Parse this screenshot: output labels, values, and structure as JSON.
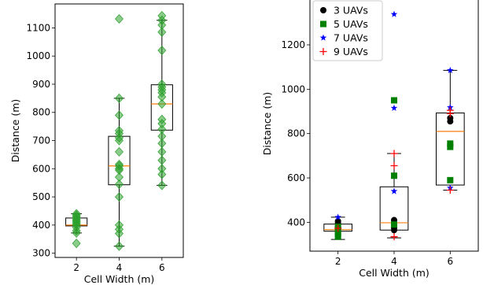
{
  "chart_data": [
    {
      "type": "boxplot",
      "xlabel": "Cell Width (m)",
      "ylabel": "Distance (m)",
      "ylim": [
        285,
        1185
      ],
      "x_positions": [
        2,
        4,
        6
      ],
      "categories": [
        "2",
        "4",
        "6"
      ],
      "yticks": [
        300,
        400,
        500,
        600,
        700,
        800,
        900,
        1000,
        1100
      ],
      "ytick_labels": [
        "300",
        "400",
        "500",
        "600",
        "700",
        "800",
        "900",
        "1000",
        "1100"
      ],
      "xtick_labels": [
        "2",
        "4",
        "6"
      ],
      "boxes": [
        {
          "x": 2,
          "q1": 397,
          "median": 400,
          "q3": 425,
          "whisker_low": 372,
          "whisker_high": 440
        },
        {
          "x": 4,
          "q1": 543,
          "median": 610,
          "q3": 715,
          "whisker_low": 325,
          "whisker_high": 850
        },
        {
          "x": 6,
          "q1": 737,
          "median": 830,
          "q3": 898,
          "whisker_low": 541,
          "whisker_high": 1127
        }
      ],
      "points_color": "#2ca02c",
      "points": [
        {
          "x": 2,
          "values": [
            335,
            372,
            380,
            392,
            400,
            405,
            410,
            415,
            420,
            425,
            430,
            435,
            440
          ]
        },
        {
          "x": 4,
          "values": [
            325,
            370,
            385,
            400,
            500,
            545,
            570,
            595,
            600,
            610,
            615,
            660,
            700,
            710,
            725,
            735,
            790,
            850,
            1132
          ]
        },
        {
          "x": 6,
          "values": [
            541,
            580,
            600,
            630,
            660,
            690,
            715,
            740,
            760,
            775,
            830,
            855,
            870,
            880,
            890,
            900,
            1020,
            1085,
            1110,
            1127,
            1143
          ]
        }
      ],
      "box_color": "#000000",
      "median_color": "#ff7f0e"
    },
    {
      "type": "boxplot",
      "xlabel": "Cell Width (m)",
      "ylabel": "Distance (m)",
      "ylim": [
        270,
        1420
      ],
      "x_positions": [
        2,
        4,
        6
      ],
      "categories": [
        "2",
        "4",
        "6"
      ],
      "yticks": [
        400,
        600,
        800,
        1000,
        1200
      ],
      "ytick_labels": [
        "400",
        "600",
        "800",
        "1000",
        "1200"
      ],
      "xtick_labels": [
        "2",
        "4",
        "6"
      ],
      "boxes": [
        {
          "x": 2,
          "q1": 360,
          "median": 367,
          "q3": 392,
          "whisker_low": 323,
          "whisker_high": 423
        },
        {
          "x": 4,
          "q1": 365,
          "median": 398,
          "q3": 560,
          "whisker_low": 330,
          "whisker_high": 710
        },
        {
          "x": 6,
          "q1": 568,
          "median": 810,
          "q3": 893,
          "whisker_low": 545,
          "whisker_high": 1085
        }
      ],
      "box_color": "#000000",
      "median_color": "#ff7f0e",
      "legend": {
        "placement": "top-left",
        "entries": [
          {
            "name": "3 UAVs",
            "marker": "circle",
            "color": "#000000"
          },
          {
            "name": "5 UAVs",
            "marker": "square",
            "color": "#008000"
          },
          {
            "name": "7 UAVs",
            "marker": "star",
            "color": "#0000ff"
          },
          {
            "name": "9 UAVs",
            "marker": "plus",
            "color": "#ff0000"
          }
        ]
      },
      "series": [
        {
          "name": "3 UAVs",
          "marker": "circle",
          "color": "#000000",
          "points": [
            {
              "x": 2,
              "y": 360
            },
            {
              "x": 2,
              "y": 370
            },
            {
              "x": 2,
              "y": 380
            },
            {
              "x": 2,
              "y": 395
            },
            {
              "x": 2,
              "y": 405
            },
            {
              "x": 4,
              "y": 365
            },
            {
              "x": 4,
              "y": 375
            },
            {
              "x": 4,
              "y": 390
            },
            {
              "x": 4,
              "y": 410
            },
            {
              "x": 6,
              "y": 855
            },
            {
              "x": 6,
              "y": 870
            }
          ]
        },
        {
          "name": "5 UAVs",
          "marker": "square",
          "color": "#008000",
          "points": [
            {
              "x": 2,
              "y": 335
            },
            {
              "x": 2,
              "y": 350
            },
            {
              "x": 2,
              "y": 365
            },
            {
              "x": 2,
              "y": 380
            },
            {
              "x": 4,
              "y": 390
            },
            {
              "x": 4,
              "y": 610
            },
            {
              "x": 4,
              "y": 950
            },
            {
              "x": 6,
              "y": 590
            },
            {
              "x": 6,
              "y": 740
            },
            {
              "x": 6,
              "y": 755
            }
          ]
        },
        {
          "name": "7 UAVs",
          "marker": "star",
          "color": "#0000ff",
          "points": [
            {
              "x": 2,
              "y": 423
            },
            {
              "x": 4,
              "y": 540
            },
            {
              "x": 4,
              "y": 915
            },
            {
              "x": 4,
              "y": 1338
            },
            {
              "x": 6,
              "y": 1085
            },
            {
              "x": 6,
              "y": 918
            },
            {
              "x": 6,
              "y": 555
            }
          ]
        },
        {
          "name": "9 UAVs",
          "marker": "plus",
          "color": "#ff0000",
          "points": [
            {
              "x": 2,
              "y": 373
            },
            {
              "x": 4,
              "y": 335
            },
            {
              "x": 4,
              "y": 655
            },
            {
              "x": 4,
              "y": 710
            },
            {
              "x": 6,
              "y": 545
            },
            {
              "x": 6,
              "y": 890
            },
            {
              "x": 6,
              "y": 905
            }
          ]
        }
      ]
    }
  ]
}
